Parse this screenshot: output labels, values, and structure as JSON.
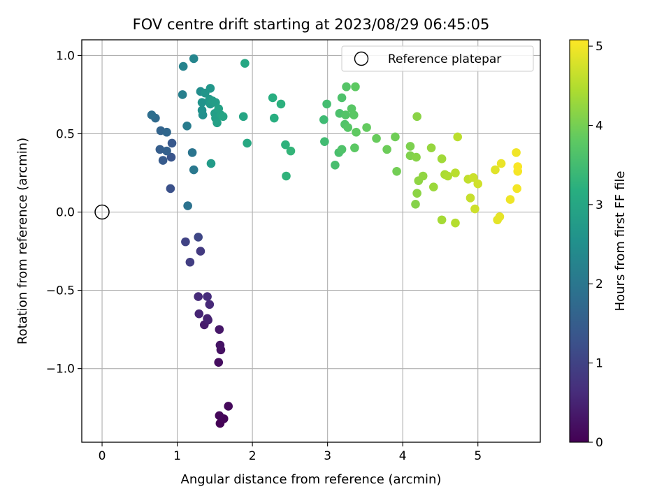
{
  "chart_data": {
    "type": "scatter",
    "title": "FOV centre drift starting at 2023/08/29 06:45:05",
    "xlabel": "Angular distance from reference (arcmin)",
    "ylabel": "Rotation from reference (arcmin)",
    "xlim": [
      -0.27,
      5.83
    ],
    "ylim": [
      -1.47,
      1.1
    ],
    "xticks": [
      0,
      1,
      2,
      3,
      4,
      5
    ],
    "xtick_labels": [
      "0",
      "1",
      "2",
      "3",
      "4",
      "5"
    ],
    "yticks": [
      -1.0,
      -0.5,
      0.0,
      0.5,
      1.0
    ],
    "ytick_labels": [
      "−1.0",
      "−0.5",
      "0.0",
      "0.5",
      "1.0"
    ],
    "grid": true,
    "legend": {
      "position": "top-right",
      "entries": [
        "Reference platepar"
      ]
    },
    "reference_point": {
      "x": 0.0,
      "y": 0.0
    },
    "colorbar": {
      "label": "Hours from first FF file",
      "colormap": "viridis",
      "range": [
        0,
        5.08
      ],
      "ticks": [
        0,
        1,
        2,
        3,
        4,
        5
      ],
      "tick_labels": [
        "0",
        "1",
        "2",
        "3",
        "4",
        "5"
      ]
    },
    "points": [
      [
        1.57,
        -1.35,
        0.02
      ],
      [
        1.62,
        -1.32,
        0.05
      ],
      [
        1.56,
        -1.3,
        0.08
      ],
      [
        1.68,
        -1.24,
        0.12
      ],
      [
        1.55,
        -0.96,
        0.18
      ],
      [
        1.58,
        -0.88,
        0.22
      ],
      [
        1.57,
        -0.85,
        0.26
      ],
      [
        1.56,
        -0.75,
        0.32
      ],
      [
        1.36,
        -0.72,
        0.38
      ],
      [
        1.41,
        -0.69,
        0.44
      ],
      [
        1.4,
        -0.68,
        0.48
      ],
      [
        1.29,
        -0.65,
        0.52
      ],
      [
        1.43,
        -0.59,
        0.58
      ],
      [
        1.28,
        -0.54,
        0.62
      ],
      [
        1.4,
        -0.54,
        0.66
      ],
      [
        1.31,
        -0.25,
        0.85
      ],
      [
        1.17,
        -0.32,
        0.92
      ],
      [
        1.11,
        -0.19,
        1.0
      ],
      [
        1.28,
        -0.16,
        1.08
      ],
      [
        0.91,
        0.15,
        1.25
      ],
      [
        0.92,
        0.35,
        1.32
      ],
      [
        0.93,
        0.44,
        1.38
      ],
      [
        0.81,
        0.33,
        1.45
      ],
      [
        0.77,
        0.4,
        1.5
      ],
      [
        0.86,
        0.39,
        1.55
      ],
      [
        0.78,
        0.52,
        1.62
      ],
      [
        0.86,
        0.51,
        1.68
      ],
      [
        0.71,
        0.6,
        1.75
      ],
      [
        0.66,
        0.62,
        1.82
      ],
      [
        1.14,
        0.04,
        1.9
      ],
      [
        1.2,
        0.38,
        1.95
      ],
      [
        1.22,
        0.27,
        2.02
      ],
      [
        1.13,
        0.55,
        2.1
      ],
      [
        1.07,
        0.75,
        2.18
      ],
      [
        1.08,
        0.93,
        2.25
      ],
      [
        1.22,
        0.98,
        2.3
      ],
      [
        1.31,
        0.77,
        2.45
      ],
      [
        1.34,
        0.62,
        2.5
      ],
      [
        1.33,
        0.65,
        2.55
      ],
      [
        1.33,
        0.7,
        2.58
      ],
      [
        1.37,
        0.76,
        2.62
      ],
      [
        1.44,
        0.79,
        2.66
      ],
      [
        1.43,
        0.72,
        2.7
      ],
      [
        1.44,
        0.69,
        2.72
      ],
      [
        1.45,
        0.31,
        2.75
      ],
      [
        1.47,
        0.71,
        2.78
      ],
      [
        1.51,
        0.7,
        2.8
      ],
      [
        1.5,
        0.63,
        2.82
      ],
      [
        1.51,
        0.6,
        2.85
      ],
      [
        1.53,
        0.57,
        2.87
      ],
      [
        1.55,
        0.66,
        2.9
      ],
      [
        1.58,
        0.62,
        2.92
      ],
      [
        1.61,
        0.61,
        2.95
      ],
      [
        1.88,
        0.61,
        2.98
      ],
      [
        1.9,
        0.95,
        3.02
      ],
      [
        1.93,
        0.44,
        3.05
      ],
      [
        2.27,
        0.73,
        3.15
      ],
      [
        2.29,
        0.6,
        3.18
      ],
      [
        2.38,
        0.69,
        3.22
      ],
      [
        2.44,
        0.43,
        3.25
      ],
      [
        2.45,
        0.23,
        3.28
      ],
      [
        2.51,
        0.39,
        3.32
      ],
      [
        2.95,
        0.59,
        3.45
      ],
      [
        2.96,
        0.45,
        3.48
      ],
      [
        2.99,
        0.69,
        3.52
      ],
      [
        3.1,
        0.3,
        3.55
      ],
      [
        3.15,
        0.38,
        3.58
      ],
      [
        3.16,
        0.63,
        3.6
      ],
      [
        3.19,
        0.73,
        3.62
      ],
      [
        3.19,
        0.4,
        3.64
      ],
      [
        3.23,
        0.56,
        3.66
      ],
      [
        3.24,
        0.62,
        3.68
      ],
      [
        3.25,
        0.8,
        3.7
      ],
      [
        3.27,
        0.54,
        3.72
      ],
      [
        3.32,
        0.66,
        3.74
      ],
      [
        3.35,
        0.62,
        3.76
      ],
      [
        3.36,
        0.41,
        3.78
      ],
      [
        3.37,
        0.8,
        3.8
      ],
      [
        3.38,
        0.51,
        3.82
      ],
      [
        3.52,
        0.54,
        3.85
      ],
      [
        3.65,
        0.47,
        3.88
      ],
      [
        3.79,
        0.4,
        3.92
      ],
      [
        3.9,
        0.48,
        3.95
      ],
      [
        3.92,
        0.26,
        3.98
      ],
      [
        4.1,
        0.42,
        4.05
      ],
      [
        4.1,
        0.36,
        4.08
      ],
      [
        4.17,
        0.05,
        4.12
      ],
      [
        4.18,
        0.35,
        4.14
      ],
      [
        4.19,
        0.61,
        4.16
      ],
      [
        4.19,
        0.12,
        4.18
      ],
      [
        4.21,
        0.2,
        4.2
      ],
      [
        4.27,
        0.23,
        4.22
      ],
      [
        4.38,
        0.41,
        4.26
      ],
      [
        4.41,
        0.16,
        4.3
      ],
      [
        4.52,
        0.34,
        4.34
      ],
      [
        4.52,
        -0.05,
        4.38
      ],
      [
        4.56,
        0.24,
        4.42
      ],
      [
        4.6,
        0.23,
        4.46
      ],
      [
        4.7,
        -0.07,
        4.5
      ],
      [
        4.7,
        0.25,
        4.54
      ],
      [
        4.73,
        0.48,
        4.56
      ],
      [
        4.87,
        0.21,
        4.6
      ],
      [
        4.9,
        0.09,
        4.64
      ],
      [
        4.94,
        0.22,
        4.68
      ],
      [
        4.96,
        0.02,
        4.7
      ],
      [
        5.0,
        0.18,
        4.72
      ],
      [
        5.23,
        0.27,
        4.85
      ],
      [
        5.26,
        -0.05,
        4.88
      ],
      [
        5.29,
        -0.03,
        4.9
      ],
      [
        5.31,
        0.31,
        4.93
      ],
      [
        5.43,
        0.08,
        4.96
      ],
      [
        5.51,
        0.38,
        4.98
      ],
      [
        5.52,
        0.15,
        5.0
      ],
      [
        5.53,
        0.26,
        5.02
      ],
      [
        5.53,
        0.29,
        5.05
      ]
    ]
  }
}
